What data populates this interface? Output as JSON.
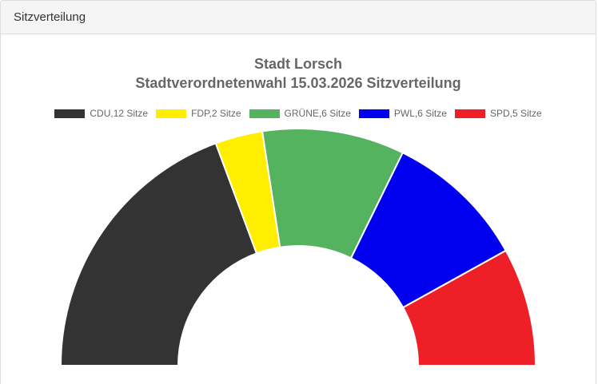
{
  "panel": {
    "header": "Sitzverteilung"
  },
  "chart_data": {
    "type": "pie",
    "subtype": "semicircle-donut",
    "title": "Stadt Lorsch",
    "subtitle": "Stadtverordnetenwahl 15.03.2026 Sitzverteilung",
    "legend_position": "top",
    "series": [
      {
        "label": "CDU,12 Sitze",
        "value": 12,
        "color": "#333333"
      },
      {
        "label": "FDP,2 Sitze",
        "value": 2,
        "color": "#ffee00"
      },
      {
        "label": "GRÜNE,6 Sitze",
        "value": 6,
        "color": "#55b35f"
      },
      {
        "label": "PWL,6 Sitze",
        "value": 6,
        "color": "#0000ee"
      },
      {
        "label": "SPD,5 Sitze",
        "value": 5,
        "color": "#ee1f26"
      }
    ]
  }
}
